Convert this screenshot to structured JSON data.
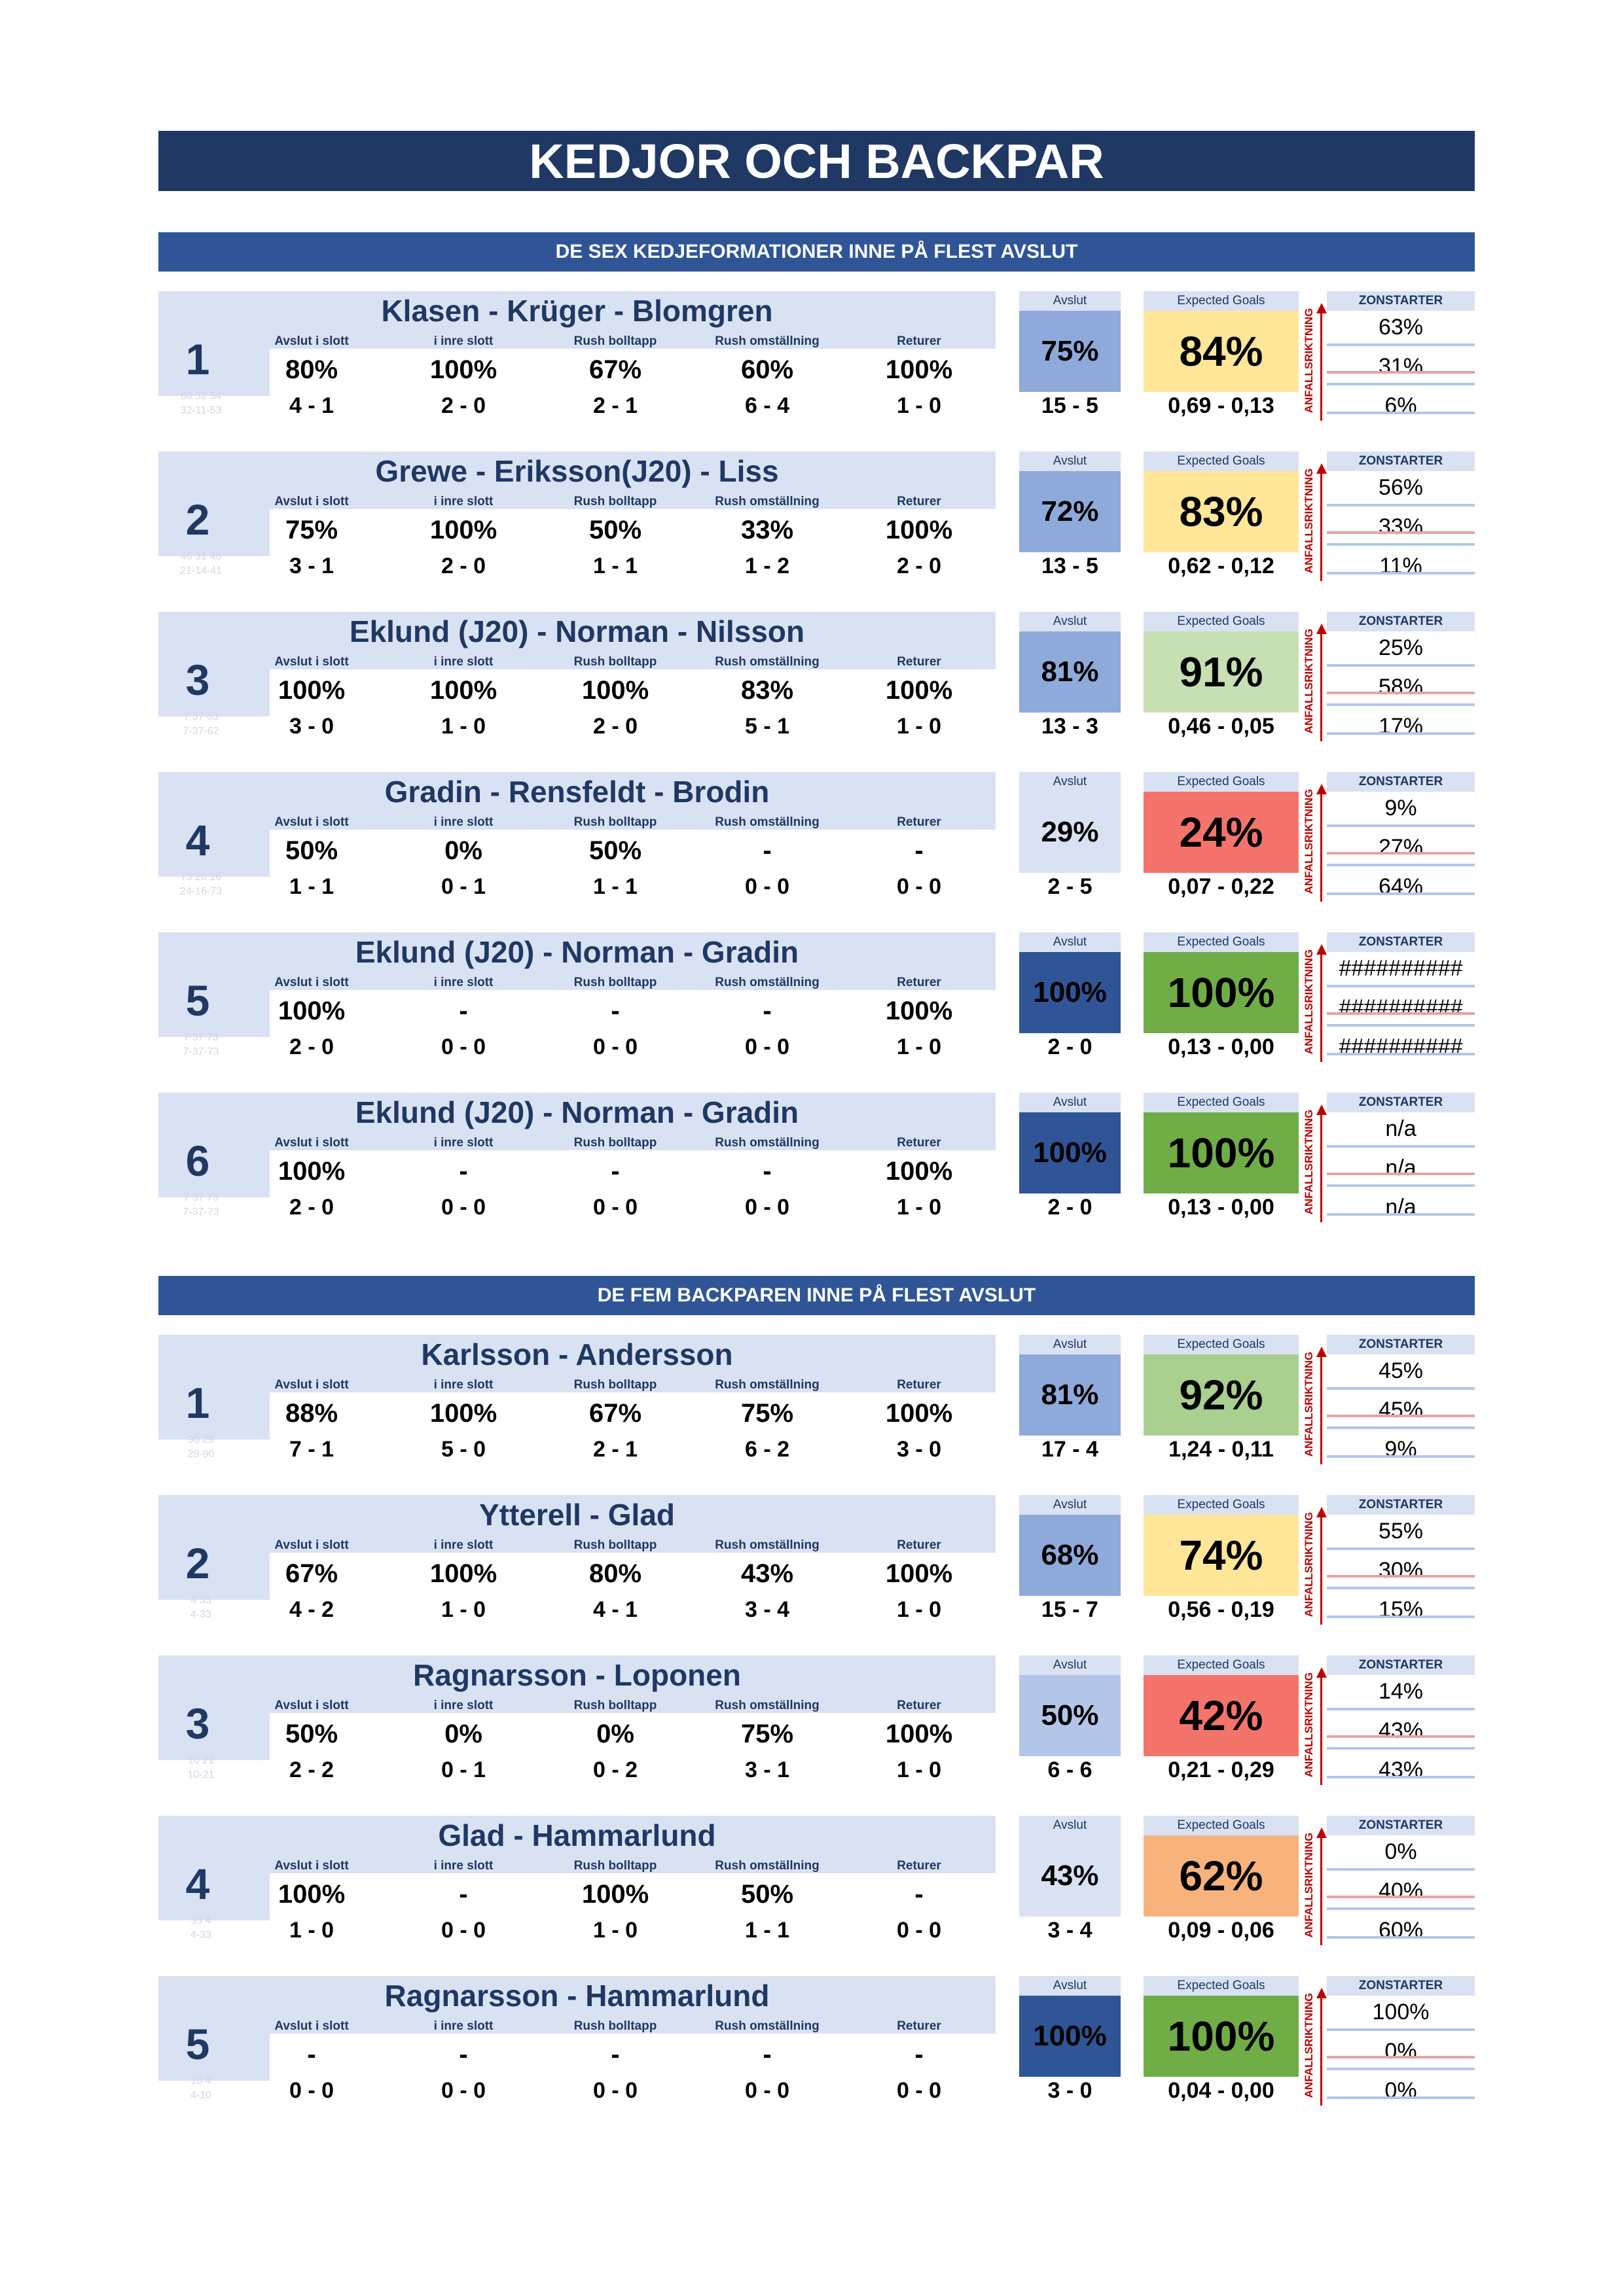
{
  "title": "KEDJOR OCH BACKPAR",
  "column_labels": [
    "Avslut i slott",
    "i inre slott",
    "Rush bolltapp",
    "Rush omställning",
    "Returer"
  ],
  "avslut_label": "Avslut",
  "xg_label": "Expected Goals",
  "zone_label": "ZONSTARTER",
  "direction_label": "ANFALLSRIKTNING",
  "sections": [
    {
      "title": "DE SEX KEDJEFORMATIONER INNE PÅ FLEST AVSLUT",
      "rows": [
        {
          "rank": "1",
          "name": "Klasen - Krüger - Blomgren",
          "faint1": "86 32 54",
          "faint2": "32-11-53",
          "stats": [
            {
              "pct": "80%",
              "count": "4 - 1"
            },
            {
              "pct": "100%",
              "count": "2 - 0"
            },
            {
              "pct": "67%",
              "count": "2 - 1"
            },
            {
              "pct": "60%",
              "count": "6 - 4"
            },
            {
              "pct": "100%",
              "count": "1 - 0"
            }
          ],
          "shots_pct": "75%",
          "shots": "15 - 5",
          "shots_color": "#8eaadb",
          "xg_pct": "84%",
          "xg": "0,69 - 0,13",
          "xg_color": "#ffe699",
          "zones": [
            "63%",
            "31%",
            "6%"
          ]
        },
        {
          "rank": "2",
          "name": "Grewe - Eriksson(J20) - Liss",
          "faint1": "46 31 46",
          "faint2": "21-14-41",
          "stats": [
            {
              "pct": "75%",
              "count": "3 - 1"
            },
            {
              "pct": "100%",
              "count": "2 - 0"
            },
            {
              "pct": "50%",
              "count": "1 - 1"
            },
            {
              "pct": "33%",
              "count": "1 - 2"
            },
            {
              "pct": "100%",
              "count": "2 - 0"
            }
          ],
          "shots_pct": "72%",
          "shots": "13 - 5",
          "shots_color": "#8eaadb",
          "xg_pct": "83%",
          "xg": "0,62 - 0,12",
          "xg_color": "#ffe699",
          "zones": [
            "56%",
            "33%",
            "11%"
          ]
        },
        {
          "rank": "3",
          "name": "Eklund (J20) - Norman - Nilsson",
          "faint1": "7 37 63",
          "faint2": "7-37-62",
          "stats": [
            {
              "pct": "100%",
              "count": "3 - 0"
            },
            {
              "pct": "100%",
              "count": "1 - 0"
            },
            {
              "pct": "100%",
              "count": "2 - 0"
            },
            {
              "pct": "83%",
              "count": "5 - 1"
            },
            {
              "pct": "100%",
              "count": "1 - 0"
            }
          ],
          "shots_pct": "81%",
          "shots": "13 - 3",
          "shots_color": "#8eaadb",
          "xg_pct": "91%",
          "xg": "0,46 - 0,05",
          "xg_color": "#c6e0b4",
          "zones": [
            "25%",
            "58%",
            "17%"
          ]
        },
        {
          "rank": "4",
          "name": "Gradin - Rensfeldt - Brodin",
          "faint1": "73 28 16",
          "faint2": "24-16-73",
          "stats": [
            {
              "pct": "50%",
              "count": "1 - 1"
            },
            {
              "pct": "0%",
              "count": "0 - 1"
            },
            {
              "pct": "50%",
              "count": "1 - 1"
            },
            {
              "pct": "-",
              "count": "0 - 0"
            },
            {
              "pct": "-",
              "count": "0 - 0"
            }
          ],
          "shots_pct": "29%",
          "shots": "2 - 5",
          "shots_color": "#d9e2f3",
          "xg_pct": "24%",
          "xg": "0,07 - 0,22",
          "xg_color": "#f4736b",
          "zones": [
            "9%",
            "27%",
            "64%"
          ]
        },
        {
          "rank": "5",
          "name": "Eklund (J20) - Norman - Gradin",
          "faint1": "7 37 73",
          "faint2": "7-37-73",
          "stats": [
            {
              "pct": "100%",
              "count": "2 - 0"
            },
            {
              "pct": "-",
              "count": "0 - 0"
            },
            {
              "pct": "-",
              "count": "0 - 0"
            },
            {
              "pct": "-",
              "count": "0 - 0"
            },
            {
              "pct": "100%",
              "count": "1 - 0"
            }
          ],
          "shots_pct": "100%",
          "shots": "2 - 0",
          "shots_color": "#2f5597",
          "xg_pct": "100%",
          "xg": "0,13 - 0,00",
          "xg_color": "#70ad47",
          "zones": [
            "##########",
            "##########",
            "##########"
          ]
        },
        {
          "rank": "6",
          "name": "Eklund (J20) - Norman - Gradin",
          "faint1": "7 37 73",
          "faint2": "7-37-73",
          "stats": [
            {
              "pct": "100%",
              "count": "2 - 0"
            },
            {
              "pct": "-",
              "count": "0 - 0"
            },
            {
              "pct": "-",
              "count": "0 - 0"
            },
            {
              "pct": "-",
              "count": "0 - 0"
            },
            {
              "pct": "100%",
              "count": "1 - 0"
            }
          ],
          "shots_pct": "100%",
          "shots": "2 - 0",
          "shots_color": "#2f5597",
          "xg_pct": "100%",
          "xg": "0,13 - 0,00",
          "xg_color": "#70ad47",
          "zones": [
            "n/a",
            "n/a",
            "n/a"
          ]
        }
      ]
    },
    {
      "title": "DE FEM BACKPAREN INNE PÅ FLEST AVSLUT",
      "rows": [
        {
          "rank": "1",
          "name": "Karlsson - Andersson",
          "faint1": "90 29",
          "faint2": "29-90",
          "stats": [
            {
              "pct": "88%",
              "count": "7 - 1"
            },
            {
              "pct": "100%",
              "count": "5 - 0"
            },
            {
              "pct": "67%",
              "count": "2 - 1"
            },
            {
              "pct": "75%",
              "count": "6 - 2"
            },
            {
              "pct": "100%",
              "count": "3 - 0"
            }
          ],
          "shots_pct": "81%",
          "shots": "17 - 4",
          "shots_color": "#8eaadb",
          "xg_pct": "92%",
          "xg": "1,24 - 0,11",
          "xg_color": "#a9d08e",
          "zones": [
            "45%",
            "45%",
            "9%"
          ]
        },
        {
          "rank": "2",
          "name": "Ytterell - Glad",
          "faint1": "4 33",
          "faint2": "4-33",
          "stats": [
            {
              "pct": "67%",
              "count": "4 - 2"
            },
            {
              "pct": "100%",
              "count": "1 - 0"
            },
            {
              "pct": "80%",
              "count": "4 - 1"
            },
            {
              "pct": "43%",
              "count": "3 - 4"
            },
            {
              "pct": "100%",
              "count": "1 - 0"
            }
          ],
          "shots_pct": "68%",
          "shots": "15 - 7",
          "shots_color": "#8eaadb",
          "xg_pct": "74%",
          "xg": "0,56 - 0,19",
          "xg_color": "#ffe699",
          "zones": [
            "55%",
            "30%",
            "15%"
          ]
        },
        {
          "rank": "3",
          "name": "Ragnarsson - Loponen",
          "faint1": "10 21",
          "faint2": "10-21",
          "stats": [
            {
              "pct": "50%",
              "count": "2 - 2"
            },
            {
              "pct": "0%",
              "count": "0 - 1"
            },
            {
              "pct": "0%",
              "count": "0 - 2"
            },
            {
              "pct": "75%",
              "count": "3 - 1"
            },
            {
              "pct": "100%",
              "count": "1 - 0"
            }
          ],
          "shots_pct": "50%",
          "shots": "6 - 6",
          "shots_color": "#b4c6e7",
          "xg_pct": "42%",
          "xg": "0,21 - 0,29",
          "xg_color": "#f4736b",
          "zones": [
            "14%",
            "43%",
            "43%"
          ]
        },
        {
          "rank": "4",
          "name": "Glad - Hammarlund",
          "faint1": "33 4",
          "faint2": "4-33",
          "stats": [
            {
              "pct": "100%",
              "count": "1 - 0"
            },
            {
              "pct": "-",
              "count": "0 - 0"
            },
            {
              "pct": "100%",
              "count": "1 - 0"
            },
            {
              "pct": "50%",
              "count": "1 - 1"
            },
            {
              "pct": "-",
              "count": "0 - 0"
            }
          ],
          "shots_pct": "43%",
          "shots": "3 - 4",
          "shots_color": "#d9e2f3",
          "xg_pct": "62%",
          "xg": "0,09 - 0,06",
          "xg_color": "#f8b27c",
          "zones": [
            "0%",
            "40%",
            "60%"
          ]
        },
        {
          "rank": "5",
          "name": "Ragnarsson - Hammarlund",
          "faint1": "10 4",
          "faint2": "4-10",
          "stats": [
            {
              "pct": "-",
              "count": "0 - 0"
            },
            {
              "pct": "-",
              "count": "0 - 0"
            },
            {
              "pct": "-",
              "count": "0 - 0"
            },
            {
              "pct": "-",
              "count": "0 - 0"
            },
            {
              "pct": "-",
              "count": "0 - 0"
            }
          ],
          "shots_pct": "100%",
          "shots": "3 - 0",
          "shots_color": "#2f5597",
          "xg_pct": "100%",
          "xg": "0,04 - 0,00",
          "xg_color": "#70ad47",
          "zones": [
            "100%",
            "0%",
            "0%"
          ]
        }
      ]
    }
  ]
}
